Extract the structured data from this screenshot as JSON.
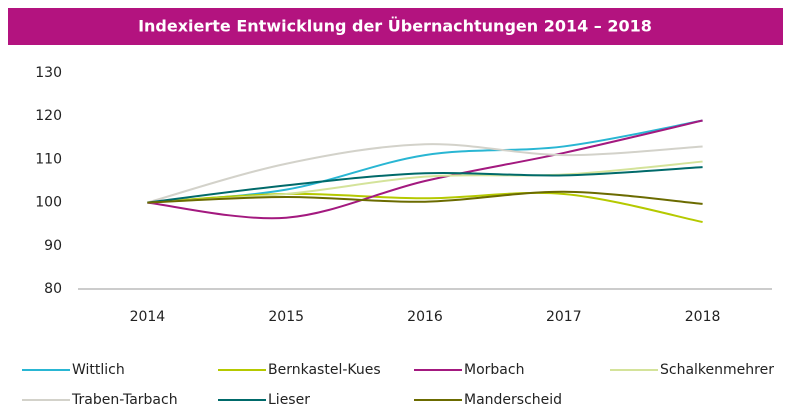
{
  "chart_data": {
    "type": "line",
    "title": "Indexierte Entwicklung der Übernachtungen 2014 – 2018",
    "categories": [
      "2014",
      "2015",
      "2016",
      "2017",
      "2018"
    ],
    "series": [
      {
        "name": "Wittlich",
        "color": "#29b6d3",
        "values": [
          100,
          103,
          111,
          113,
          119
        ]
      },
      {
        "name": "Bernkastel-Kues",
        "color": "#b5c900",
        "values": [
          100,
          102,
          101,
          102,
          95.5
        ]
      },
      {
        "name": "Morbach",
        "color": "#a3197f",
        "values": [
          100,
          96.5,
          105,
          111.5,
          119
        ]
      },
      {
        "name": "Schalkenmehrer",
        "color": "#d4e39a",
        "values": [
          100,
          102,
          106,
          106.5,
          109.5
        ]
      },
      {
        "name": "Traben-Tarbach",
        "color": "#d3d2ca",
        "values": [
          100,
          109,
          113.5,
          111,
          113
        ]
      },
      {
        "name": "Lieser",
        "color": "#006a6a",
        "values": [
          100,
          104,
          106.8,
          106.3,
          108.2
        ]
      },
      {
        "name": "Manderscheid",
        "color": "#6b6b00",
        "values": [
          100,
          101.3,
          100.2,
          102.5,
          99.7
        ]
      }
    ],
    "ylim": [
      80,
      130
    ],
    "yticks": [
      80,
      90,
      100,
      110,
      120,
      130
    ]
  }
}
